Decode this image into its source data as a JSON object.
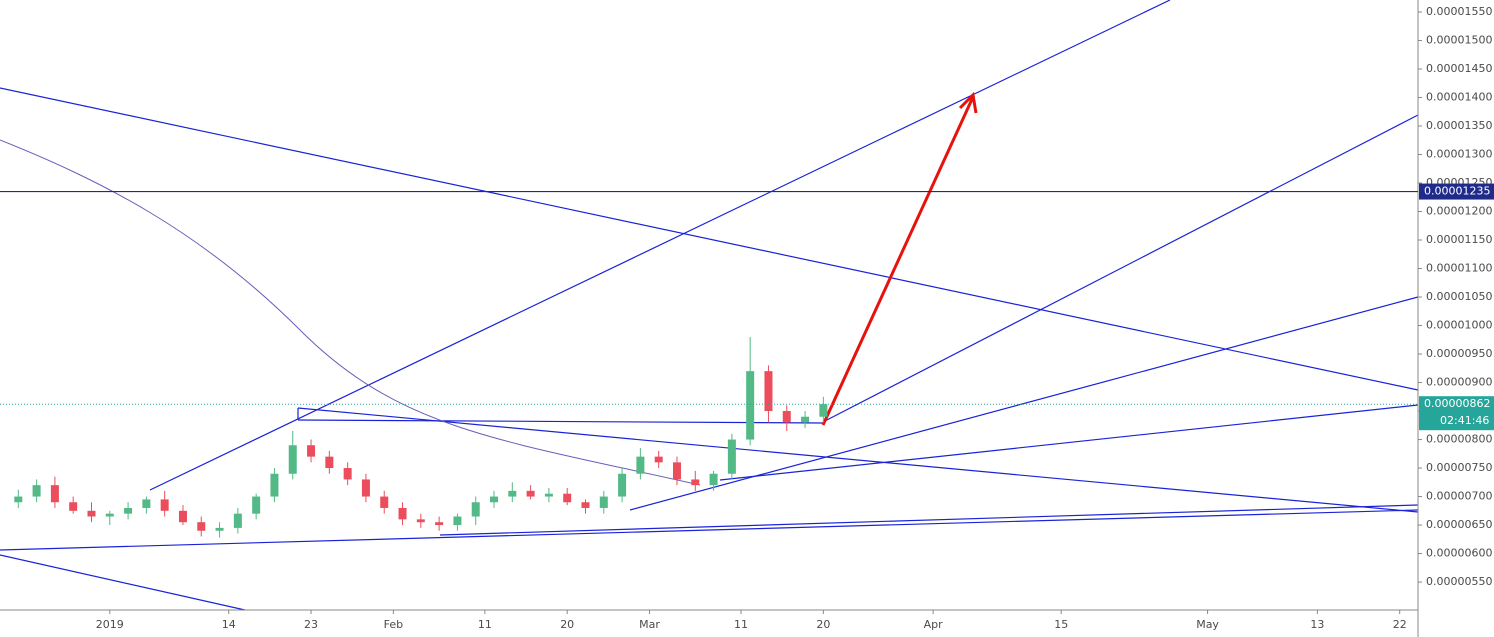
{
  "chart_data": {
    "type": "candlestick",
    "x": [
      -10,
      -8,
      -6,
      -4,
      -2,
      0,
      2,
      4,
      6,
      8,
      10,
      12,
      14,
      16,
      18,
      20,
      22,
      24,
      26,
      28,
      30,
      32,
      34,
      36,
      38,
      40,
      42,
      44,
      46,
      48,
      50,
      52,
      54,
      56,
      58,
      60,
      62,
      64,
      66,
      68,
      70,
      72,
      74,
      76,
      78
    ],
    "open": [
      6.9e-06,
      7e-06,
      7.2e-06,
      6.9e-06,
      6.75e-06,
      6.65e-06,
      6.7e-06,
      6.8e-06,
      6.95e-06,
      6.75e-06,
      6.55e-06,
      6.4e-06,
      6.45e-06,
      6.7e-06,
      7e-06,
      7.4e-06,
      7.9e-06,
      7.7e-06,
      7.5e-06,
      7.3e-06,
      7e-06,
      6.8e-06,
      6.6e-06,
      6.55e-06,
      6.5e-06,
      6.65e-06,
      6.9e-06,
      7e-06,
      7.1e-06,
      7e-06,
      7.05e-06,
      6.9e-06,
      6.8e-06,
      7e-06,
      7.4e-06,
      7.7e-06,
      7.6e-06,
      7.3e-06,
      7.2e-06,
      7.4e-06,
      8e-06,
      9.2e-06,
      8.5e-06,
      8.3e-06,
      8.4e-06
    ],
    "high": [
      7.12e-06,
      7.3e-06,
      7.35e-06,
      7e-06,
      6.9e-06,
      6.75e-06,
      6.9e-06,
      7e-06,
      7.1e-06,
      6.85e-06,
      6.65e-06,
      6.55e-06,
      6.8e-06,
      7.05e-06,
      7.5e-06,
      8.15e-06,
      8e-06,
      7.8e-06,
      7.6e-06,
      7.4e-06,
      7.1e-06,
      6.9e-06,
      6.7e-06,
      6.65e-06,
      6.7e-06,
      7e-06,
      7.1e-06,
      7.25e-06,
      7.2e-06,
      7.15e-06,
      7.15e-06,
      6.95e-06,
      7.1e-06,
      7.5e-06,
      7.85e-06,
      7.8e-06,
      7.7e-06,
      7.45e-06,
      7.45e-06,
      8.1e-06,
      9.8e-06,
      9.3e-06,
      8.6e-06,
      8.5e-06,
      8.75e-06
    ],
    "low": [
      6.8e-06,
      6.9e-06,
      6.8e-06,
      6.7e-06,
      6.55e-06,
      6.5e-06,
      6.6e-06,
      6.7e-06,
      6.65e-06,
      6.5e-06,
      6.3e-06,
      6.28e-06,
      6.35e-06,
      6.6e-06,
      6.9e-06,
      7.3e-06,
      7.6e-06,
      7.4e-06,
      7.2e-06,
      6.9e-06,
      6.7e-06,
      6.5e-06,
      6.45e-06,
      6.4e-06,
      6.4e-06,
      6.5e-06,
      6.8e-06,
      6.9e-06,
      6.95e-06,
      6.9e-06,
      6.85e-06,
      6.7e-06,
      6.7e-06,
      6.9e-06,
      7.3e-06,
      7.5e-06,
      7.2e-06,
      7.1e-06,
      7.1e-06,
      7.3e-06,
      7.9e-06,
      8.3e-06,
      8.15e-06,
      8.2e-06,
      8.3e-06
    ],
    "close": [
      7e-06,
      7.2e-06,
      6.9e-06,
      6.75e-06,
      6.65e-06,
      6.7e-06,
      6.8e-06,
      6.95e-06,
      6.75e-06,
      6.55e-06,
      6.4e-06,
      6.45e-06,
      6.7e-06,
      7e-06,
      7.4e-06,
      7.9e-06,
      7.7e-06,
      7.5e-06,
      7.3e-06,
      7e-06,
      6.8e-06,
      6.6e-06,
      6.55e-06,
      6.5e-06,
      6.65e-06,
      6.9e-06,
      7e-06,
      7.1e-06,
      7e-06,
      7.05e-06,
      6.9e-06,
      6.8e-06,
      7e-06,
      7.4e-06,
      7.7e-06,
      7.6e-06,
      7.3e-06,
      7.2e-06,
      7.4e-06,
      8e-06,
      9.2e-06,
      8.5e-06,
      8.3e-06,
      8.4e-06,
      8.62e-06
    ],
    "up_color": "#53b987",
    "down_color": "#eb4d5c",
    "xlim": [
      -12,
      143
    ],
    "xticks": [
      {
        "value": 0,
        "label": "2019"
      },
      {
        "value": 13,
        "label": "14"
      },
      {
        "value": 22,
        "label": "23"
      },
      {
        "value": 31,
        "label": "Feb"
      },
      {
        "value": 41,
        "label": "11"
      },
      {
        "value": 50,
        "label": "20"
      },
      {
        "value": 59,
        "label": "Mar"
      },
      {
        "value": 69,
        "label": "11"
      },
      {
        "value": 78,
        "label": "20"
      },
      {
        "value": 90,
        "label": "Apr"
      },
      {
        "value": 104,
        "label": "15"
      },
      {
        "value": 120,
        "label": "May"
      },
      {
        "value": 132,
        "label": "13"
      },
      {
        "value": 141,
        "label": "22"
      }
    ],
    "ylim": [
      5.01e-06,
      1.571e-05
    ],
    "yticks": [
      {
        "value": 5.5e-06,
        "label": "0.00000550"
      },
      {
        "value": 6e-06,
        "label": "0.00000600"
      },
      {
        "value": 6.5e-06,
        "label": "0.00000650"
      },
      {
        "value": 7e-06,
        "label": "0.00000700"
      },
      {
        "value": 7.5e-06,
        "label": "0.00000750"
      },
      {
        "value": 8e-06,
        "label": "0.00000800"
      },
      {
        "value": 8.5e-06,
        "label": "0.00000850"
      },
      {
        "value": 9e-06,
        "label": "0.00000900"
      },
      {
        "value": 9.5e-06,
        "label": "0.00000950"
      },
      {
        "value": 1e-05,
        "label": "0.00001000"
      },
      {
        "value": 1.05e-05,
        "label": "0.00001050"
      },
      {
        "value": 1.1e-05,
        "label": "0.00001100"
      },
      {
        "value": 1.15e-05,
        "label": "0.00001150"
      },
      {
        "value": 1.2e-05,
        "label": "0.00001200"
      },
      {
        "value": 1.25e-05,
        "label": "0.00001250"
      },
      {
        "value": 1.3e-05,
        "label": "0.00001300"
      },
      {
        "value": 1.35e-05,
        "label": "0.00001350"
      },
      {
        "value": 1.4e-05,
        "label": "0.00001400"
      },
      {
        "value": 1.45e-05,
        "label": "0.00001450"
      },
      {
        "value": 1.5e-05,
        "label": "0.00001500"
      },
      {
        "value": 1.55e-05,
        "label": "0.00001550"
      }
    ],
    "horizontal_line": 1.235e-05,
    "horizontal_line_color": "#1f2a8a",
    "last_price": 8.62e-06,
    "last_price_color": "#26a69a",
    "countdown": "02:41:46"
  }
}
